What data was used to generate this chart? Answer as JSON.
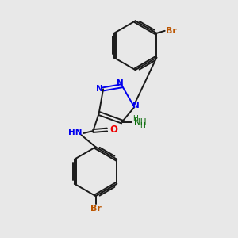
{
  "background_color": "#e8e8e8",
  "bond_color": "#1a1a1a",
  "nitrogen_color": "#0000ee",
  "oxygen_color": "#ee0000",
  "bromine_color": "#bb5500",
  "nh_color": "#006600",
  "figsize": [
    3.0,
    3.0
  ],
  "dpi": 100,
  "xlim": [
    0,
    10
  ],
  "ylim": [
    0,
    10
  ]
}
